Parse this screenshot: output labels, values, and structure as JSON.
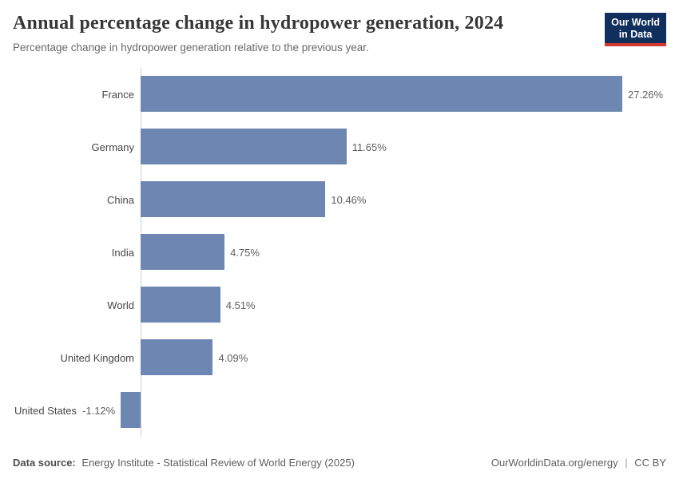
{
  "header": {
    "title": "Annual percentage change in hydropower generation, 2024",
    "subtitle": "Percentage change in hydropower generation relative to the previous year.",
    "logo": {
      "line1": "Our World",
      "line2": "in Data",
      "bg_color": "#112f5c",
      "accent_color": "#d4382d"
    }
  },
  "chart_data": {
    "type": "bar",
    "orientation": "horizontal",
    "title": "Annual percentage change in hydropower generation, 2024",
    "subtitle": "Percentage change in hydropower generation relative to the previous year.",
    "categories": [
      "France",
      "Germany",
      "China",
      "India",
      "World",
      "United Kingdom",
      "United States"
    ],
    "values": [
      27.26,
      11.65,
      10.46,
      4.75,
      4.51,
      4.09,
      -1.12
    ],
    "value_labels": [
      "27.26%",
      "11.65%",
      "10.46%",
      "4.75%",
      "4.51%",
      "4.09%",
      "-1.12%"
    ],
    "unit": "%",
    "xlim": [
      -1.12,
      27.26
    ],
    "grid": false,
    "legend": "none",
    "bar_color": "#6d87b2",
    "axis_line_color": "#d0d0d0"
  },
  "footer": {
    "datasource_label": "Data source:",
    "datasource_text": "Energy Institute - Statistical Review of World Energy (2025)",
    "url_text": "OurWorldinData.org/energy",
    "separator": "|",
    "license_text": "CC BY"
  }
}
